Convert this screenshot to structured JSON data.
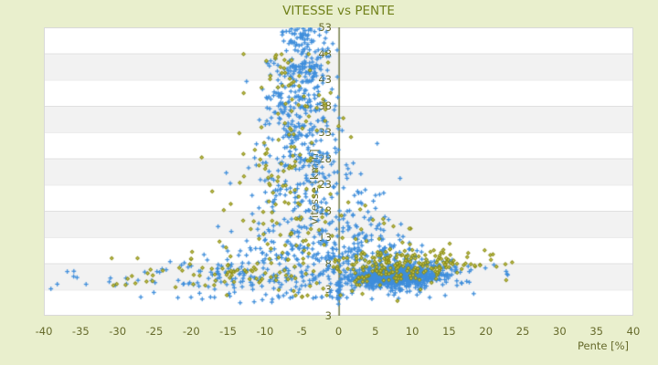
{
  "chart_data": {
    "type": "scatter",
    "title": "VITESSE vs PENTE",
    "xlabel": "Pente [%]",
    "ylabel": "Vitesse [km/h]",
    "xlim": [
      -40,
      40
    ],
    "ylim": [
      -2,
      53
    ],
    "x_ticks": [
      "-40",
      "-35",
      "-30",
      "-25",
      "-20",
      "-15",
      "-10",
      "-5",
      "0",
      "5",
      "10",
      "15",
      "20",
      "25",
      "30",
      "35",
      "40"
    ],
    "x_tick_values": [
      -40,
      -35,
      -30,
      -25,
      -20,
      -15,
      -10,
      -5,
      0,
      5,
      10,
      15,
      20,
      25,
      30,
      35,
      40
    ],
    "y_ticks": [
      "53",
      "48",
      "43",
      "38",
      "33",
      "28",
      "23",
      "18",
      "13",
      "8",
      "3"
    ],
    "y_tick_values": [
      53,
      48,
      43,
      38,
      33,
      28,
      23,
      18,
      13,
      8,
      3
    ],
    "y_bottom_edge_label": "3",
    "grid": "horizontal-bands-alternating",
    "legend": "none",
    "colors": {
      "background": "#e9efcd",
      "band_light": "#ffffff",
      "band_dark": "#f2f2f2",
      "grid_line": "#d9d9d9",
      "axis_line": "#4f5a17",
      "tick_text": "#666a2b",
      "title_text": "#708019",
      "series_blue": "#3f8edb",
      "series_olive_edge": "#8a8b16",
      "series_olive_core": "#cbcc58"
    },
    "seed": 1234,
    "series": [
      {
        "id": "blue",
        "marker": "plus",
        "color": "#3f8edb",
        "clusters": [
          {
            "n": 780,
            "cx": 7.0,
            "cy": 5.4,
            "sx": 2.6,
            "sy": 0.9
          },
          {
            "n": 170,
            "cx": 8.5,
            "cy": 6.4,
            "sx": 3.8,
            "sy": 1.5
          },
          {
            "n": 70,
            "cx": 12.0,
            "cy": 5.8,
            "sx": 3.2,
            "sy": 1.1,
            "xmin": 8
          },
          {
            "n": 60,
            "cx": 6.0,
            "cy": 9.3,
            "sx": 3.4,
            "sy": 1.5
          },
          {
            "n": 65,
            "cx": -4.8,
            "cy": 50.8,
            "sx": 1.9,
            "sy": 1.4,
            "ymax": 53.1
          },
          {
            "n": 105,
            "cx": -5.2,
            "cy": 45.5,
            "sx": 2.2,
            "sy": 1.9
          },
          {
            "n": 95,
            "cx": -5.5,
            "cy": 39.5,
            "sx": 2.6,
            "sy": 1.9
          },
          {
            "n": 85,
            "cx": -5.0,
            "cy": 33.5,
            "sx": 3.0,
            "sy": 1.9
          },
          {
            "n": 75,
            "cx": -4.6,
            "cy": 27.5,
            "sx": 3.4,
            "sy": 1.9
          },
          {
            "n": 75,
            "cx": -4.2,
            "cy": 21.5,
            "sx": 4.0,
            "sy": 1.9
          },
          {
            "n": 85,
            "cx": -4.0,
            "cy": 15.5,
            "sx": 5.0,
            "sy": 1.9
          },
          {
            "n": 105,
            "cx": -4.0,
            "cy": 10.2,
            "sx": 6.2,
            "sy": 1.5
          },
          {
            "n": 140,
            "cx": -9.0,
            "cy": 5.6,
            "sx": 7.5,
            "sy": 1.6,
            "xmax": 0.5
          },
          {
            "n": 26,
            "ux": [
              -40,
              -16
            ],
            "cy": 5.2,
            "sy": 1.5
          },
          {
            "n": 42,
            "cx": 3.5,
            "cy": 14.0,
            "sx": 2.6,
            "sy": 5.5,
            "ymin": 8.5,
            "xmin": 0.3
          },
          {
            "n": 38,
            "cx": -3.0,
            "cy": 1.9,
            "sx": 9.0,
            "sy": 0.8,
            "ymin": 0.3,
            "ymax": 3.2
          },
          {
            "n": 22,
            "cx": 0.05,
            "cy": 2.6,
            "sx": 0.12,
            "sy": 1.1
          },
          {
            "n": 10,
            "ux": [
              13.5,
              23.5
            ],
            "cy": 5.8,
            "sy": 1.6
          }
        ]
      },
      {
        "id": "olive",
        "marker": "diamond",
        "color": "#8a8b16",
        "clusters": [
          {
            "n": 150,
            "cx": 9.0,
            "cy": 7.9,
            "sx": 4.6,
            "sy": 1.6,
            "xmin": -1
          },
          {
            "n": 45,
            "cx": 6.5,
            "cy": 5.9,
            "sx": 3.0,
            "sy": 1.1
          },
          {
            "n": 26,
            "cx": -6.5,
            "cy": 45.0,
            "sx": 3.0,
            "sy": 2.8
          },
          {
            "n": 34,
            "cx": -7.5,
            "cy": 36.0,
            "sx": 3.4,
            "sy": 3.4
          },
          {
            "n": 45,
            "cx": -8.0,
            "cy": 26.0,
            "sx": 4.0,
            "sy": 4.0
          },
          {
            "n": 55,
            "cx": -7.0,
            "cy": 15.0,
            "sx": 5.0,
            "sy": 3.4
          },
          {
            "n": 70,
            "cx": -11.0,
            "cy": 6.2,
            "sx": 7.5,
            "sy": 1.7,
            "xmax": 0.5
          },
          {
            "n": 12,
            "ux": [
              -31,
              -13
            ],
            "cy": 6.2,
            "sy": 1.8
          },
          {
            "n": 12,
            "cx": 6.0,
            "cy": 17.0,
            "sx": 3.2,
            "sy": 5.5,
            "ymin": 9
          },
          {
            "n": 14,
            "ux": [
              13,
              24
            ],
            "cy": 8.4,
            "sy": 1.3
          },
          {
            "n": 12,
            "cx": -4.0,
            "cy": 2.1,
            "sx": 7.0,
            "sy": 0.8,
            "ymax": 3.2
          }
        ]
      }
    ]
  }
}
